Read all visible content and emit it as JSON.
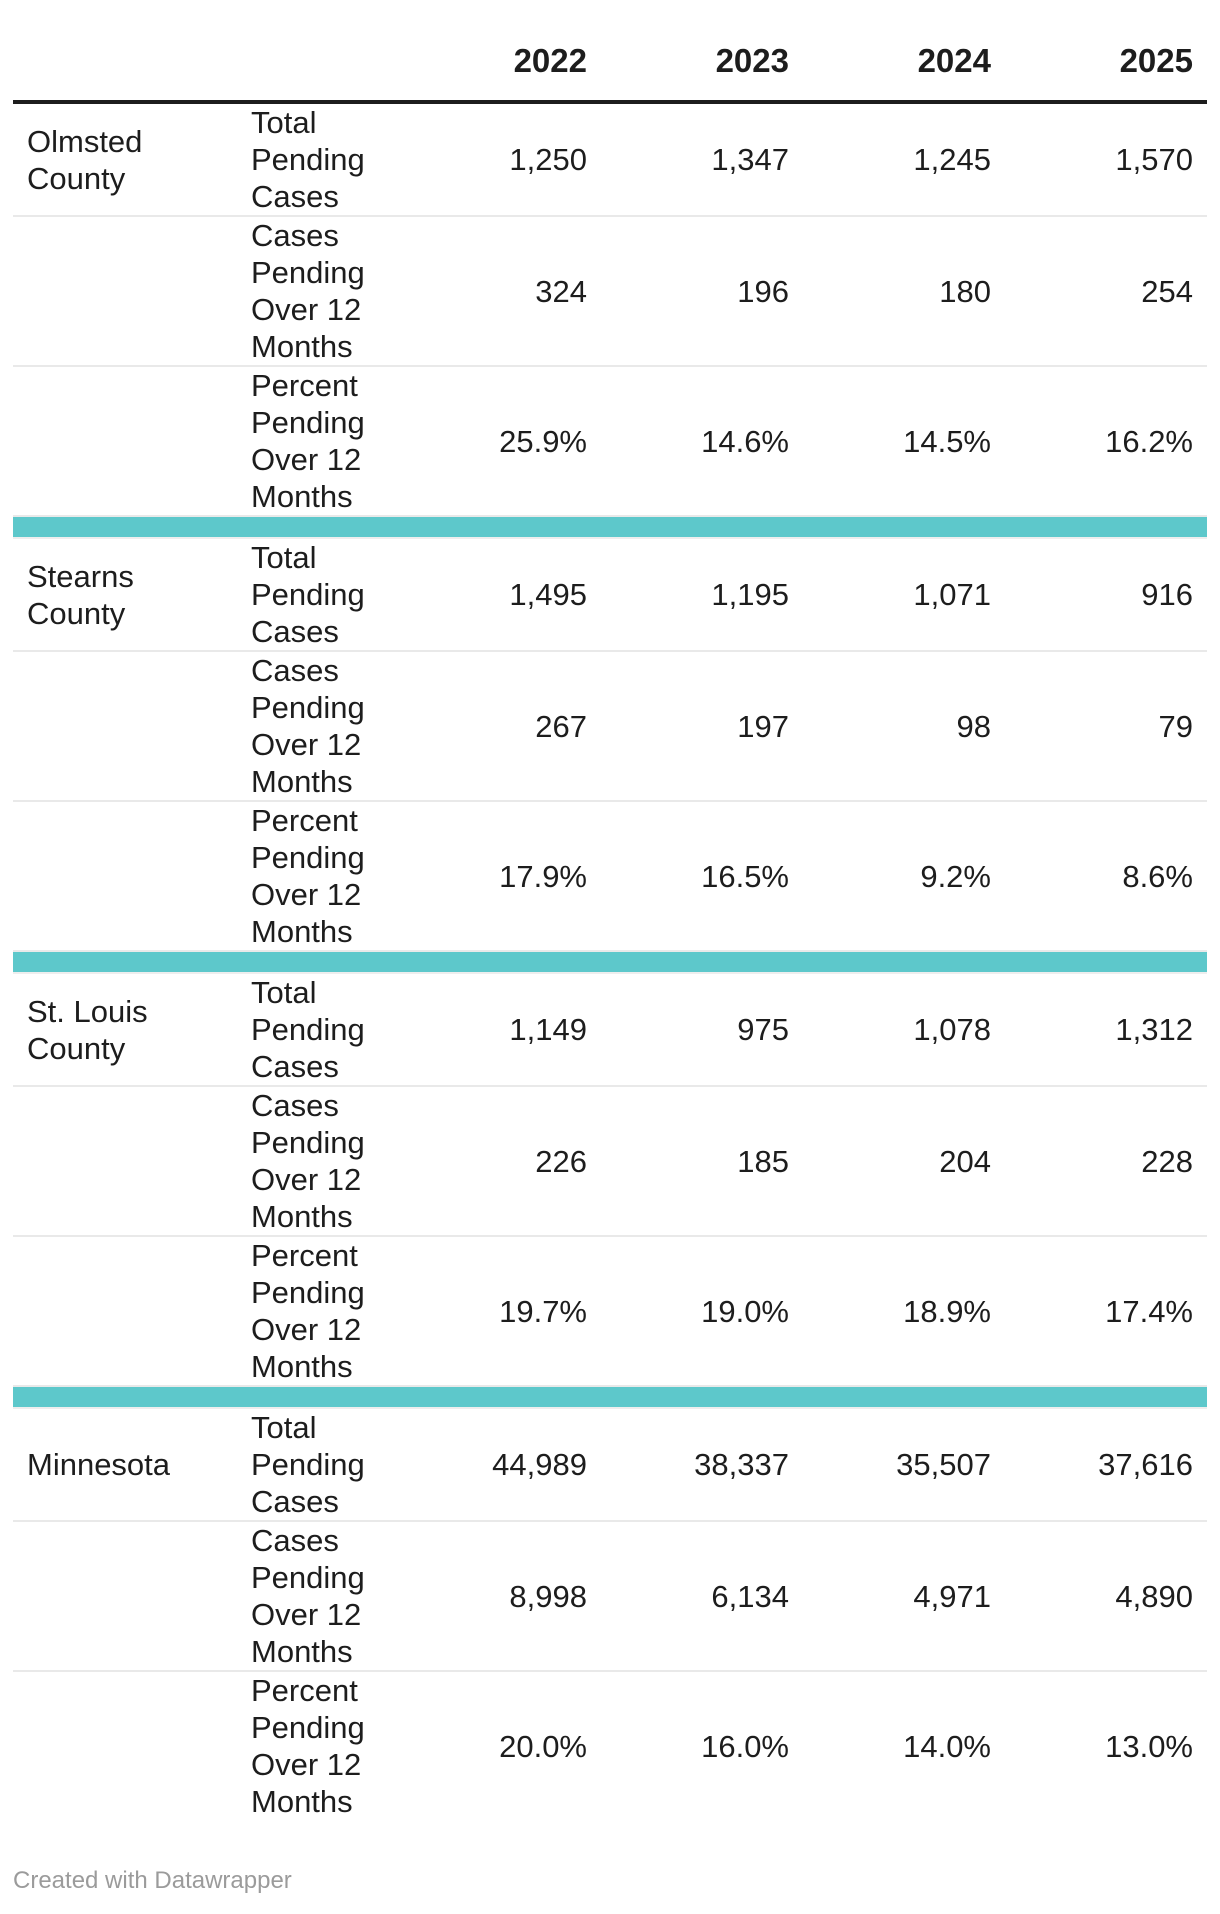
{
  "chart_data": {
    "type": "table",
    "years": [
      "2022",
      "2023",
      "2024",
      "2025"
    ],
    "groups": [
      {
        "county": "Olmsted County",
        "rows": [
          {
            "metric": "Total Pending Cases",
            "values": [
              "1,250",
              "1,347",
              "1,245",
              "1,570"
            ]
          },
          {
            "metric": "Cases Pending Over 12 Months",
            "values": [
              "324",
              "196",
              "180",
              "254"
            ]
          },
          {
            "metric": "Percent Pending Over 12 Months",
            "values": [
              "25.9%",
              "14.6%",
              "14.5%",
              "16.2%"
            ]
          }
        ]
      },
      {
        "county": "Stearns County",
        "rows": [
          {
            "metric": "Total Pending Cases",
            "values": [
              "1,495",
              "1,195",
              "1,071",
              "916"
            ]
          },
          {
            "metric": "Cases Pending Over 12 Months",
            "values": [
              "267",
              "197",
              "98",
              "79"
            ]
          },
          {
            "metric": "Percent Pending Over 12 Months",
            "values": [
              "17.9%",
              "16.5%",
              "9.2%",
              "8.6%"
            ]
          }
        ]
      },
      {
        "county": "St. Louis County",
        "rows": [
          {
            "metric": "Total Pending Cases",
            "values": [
              "1,149",
              "975",
              "1,078",
              "1,312"
            ]
          },
          {
            "metric": "Cases Pending Over 12 Months",
            "values": [
              "226",
              "185",
              "204",
              "228"
            ]
          },
          {
            "metric": "Percent Pending Over 12 Months",
            "values": [
              "19.7%",
              "19.0%",
              "18.9%",
              "17.4%"
            ]
          }
        ]
      },
      {
        "county": "Minnesota",
        "rows": [
          {
            "metric": "Total Pending Cases",
            "values": [
              "44,989",
              "38,337",
              "35,507",
              "37,616"
            ]
          },
          {
            "metric": "Cases Pending Over 12 Months",
            "values": [
              "8,998",
              "6,134",
              "4,971",
              "4,890"
            ]
          },
          {
            "metric": "Percent Pending Over 12 Months",
            "values": [
              "20.0%",
              "16.0%",
              "14.0%",
              "13.0%"
            ]
          }
        ]
      }
    ]
  },
  "footer": {
    "credit": "Created with Datawrapper"
  },
  "colors": {
    "separator_teal": "#5dc8cb",
    "header_rule": "#1d1d1d",
    "row_divider": "#e9e9e9",
    "text": "#1d1d1d",
    "credit_gray": "#9b9b9b"
  }
}
